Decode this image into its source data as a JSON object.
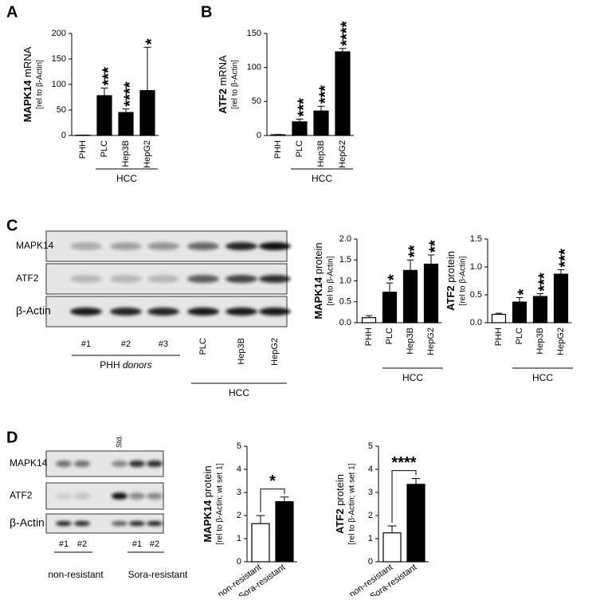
{
  "panel_labels": [
    "A",
    "B",
    "C",
    "D"
  ],
  "blots": [
    {
      "rows": [
        "MAPK14",
        "ATF2",
        "β-Actin"
      ],
      "lanes": [
        "#1",
        "#2",
        "#3",
        "PLC",
        "Hep3B",
        "HepG2"
      ],
      "groups": [
        {
          "name": "PHH",
          "qualifier": "donors"
        },
        {
          "name": "HCC"
        }
      ]
    },
    {
      "rows": [
        "MAPK14",
        "ATF2",
        "β-Actin"
      ],
      "lanes": [
        "#1",
        "#2",
        "Std.",
        "#1",
        "#2"
      ],
      "groups": [
        {
          "name": "non-resistant"
        },
        {
          "name": "Sora-resistant"
        }
      ]
    }
  ],
  "chart_data": [
    {
      "type": "bar",
      "ylabel_gene": "MAPK14",
      "ylabel_measure": "mRNA",
      "ylabel_sub": "[rel to β-Actin]",
      "categories": [
        "PHH",
        "PLC",
        "Hep3B",
        "HepG2"
      ],
      "values": [
        0.5,
        78,
        45,
        88
      ],
      "errors": [
        0.3,
        15,
        7,
        85
      ],
      "colors": [
        "#ffffff",
        "#000000",
        "#000000",
        "#000000"
      ],
      "significance": [
        null,
        "***",
        "****",
        "*"
      ],
      "group_label": "HCC",
      "ylim": [
        0,
        200
      ],
      "yticks": [
        0,
        50,
        100,
        150,
        200
      ]
    },
    {
      "type": "bar",
      "ylabel_gene": "ATF2",
      "ylabel_measure": "mRNA",
      "ylabel_sub": "[rel to β-Actin]",
      "categories": [
        "PHH",
        "PLC",
        "Hep3B",
        "HepG2"
      ],
      "values": [
        1,
        20,
        36,
        123
      ],
      "errors": [
        0.5,
        4,
        7,
        5
      ],
      "colors": [
        "#ffffff",
        "#000000",
        "#000000",
        "#000000"
      ],
      "significance": [
        null,
        "***",
        "***",
        "****"
      ],
      "group_label": "HCC",
      "ylim": [
        0,
        150
      ],
      "yticks": [
        0,
        50,
        100,
        150
      ]
    },
    {
      "type": "bar",
      "ylabel_gene": "MAPK14",
      "ylabel_measure": "protein",
      "ylabel_sub": "[rel to β-Actin]",
      "categories": [
        "PHH",
        "PLC",
        "Hep3B",
        "HepG2"
      ],
      "values": [
        0.12,
        0.73,
        1.25,
        1.4
      ],
      "errors": [
        0.05,
        0.22,
        0.25,
        0.22
      ],
      "colors": [
        "#ffffff",
        "#000000",
        "#000000",
        "#000000"
      ],
      "significance": [
        null,
        "*",
        "**",
        "**"
      ],
      "group_label": "HCC",
      "ylim": [
        0,
        2
      ],
      "yticks": [
        {
          "value": 0,
          "label": "0.0"
        },
        {
          "value": 0.5,
          "label": "0.5"
        },
        {
          "value": 1,
          "label": "1.0"
        },
        {
          "value": 1.5,
          "label": "1.5"
        },
        {
          "value": 2,
          "label": "2.0"
        }
      ]
    },
    {
      "type": "bar",
      "ylabel_gene": "ATF2",
      "ylabel_measure": "protein",
      "ylabel_sub": "[rel to β-Actin]",
      "categories": [
        "PHH",
        "PLC",
        "Hep3B",
        "HepG2"
      ],
      "values": [
        0.15,
        0.37,
        0.47,
        0.87
      ],
      "errors": [
        0.02,
        0.08,
        0.05,
        0.08
      ],
      "colors": [
        "#ffffff",
        "#000000",
        "#000000",
        "#000000"
      ],
      "significance": [
        null,
        "*",
        "***",
        "***"
      ],
      "group_label": "HCC",
      "ylim": [
        0,
        1.5
      ],
      "yticks": [
        {
          "value": 0,
          "label": "0.0"
        },
        {
          "value": 0.5,
          "label": "0.5"
        },
        {
          "value": 1,
          "label": "1.0"
        },
        {
          "value": 1.5,
          "label": "1.5"
        }
      ]
    },
    {
      "type": "bar",
      "ylabel_gene": "MAPK14",
      "ylabel_measure": "protein",
      "ylabel_sub": "[rel to β-Actin; wt set 1]",
      "categories": [
        "non-resistant",
        "Sora-resistant"
      ],
      "values": [
        1.65,
        2.6
      ],
      "errors": [
        0.35,
        0.2
      ],
      "colors": [
        "#ffffff",
        "#000000"
      ],
      "bracket_significance": "*",
      "ylim": [
        0,
        5
      ],
      "yticks": [
        0,
        1,
        2,
        3,
        4,
        5
      ]
    },
    {
      "type": "bar",
      "ylabel_gene": "ATF2",
      "ylabel_measure": "protein",
      "ylabel_sub": "[rel to β-Actin; wt set 1]",
      "categories": [
        "non-resistant",
        "Sora-resistant"
      ],
      "values": [
        1.25,
        3.35
      ],
      "errors": [
        0.3,
        0.25
      ],
      "colors": [
        "#ffffff",
        "#000000"
      ],
      "bracket_significance": "****",
      "ylim": [
        0,
        5
      ],
      "yticks": [
        0,
        1,
        2,
        3,
        4,
        5
      ]
    }
  ]
}
